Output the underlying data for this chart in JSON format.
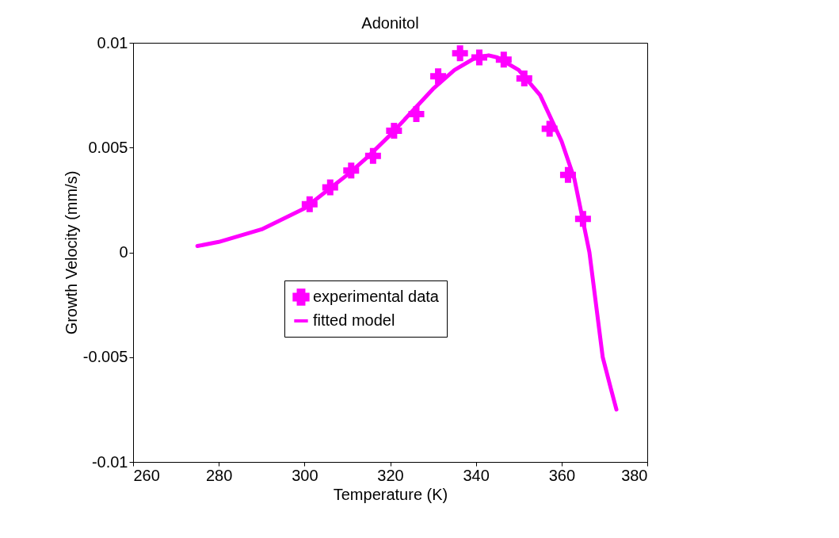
{
  "chart_data": {
    "type": "scatter",
    "title": "Adonitol",
    "xlabel": "Temperature (K)",
    "ylabel": "Growth Velocity (mm/s)",
    "xlim": [
      260,
      380
    ],
    "xticks": [
      260,
      280,
      300,
      320,
      340,
      360,
      380
    ],
    "ylim": [
      -0.01,
      0.01
    ],
    "yticks": [
      -0.01,
      -0.005,
      0,
      0.005,
      0.01
    ],
    "grid": false,
    "legend": "center",
    "series": [
      {
        "name": "experimental data",
        "marker": "cross",
        "color": "#ff00ff",
        "x": [
          301.2,
          306.0,
          310.9,
          316.0,
          320.9,
          326.1,
          331.2,
          336.3,
          340.8,
          346.5,
          351.3,
          357.2,
          361.5,
          365.0
        ],
        "values": [
          0.0023,
          0.0031,
          0.0039,
          0.0046,
          0.0058,
          0.0066,
          0.0084,
          0.0095,
          0.0093,
          0.0092,
          0.0083,
          0.0059,
          0.0037,
          0.0016
        ]
      },
      {
        "name": "fitted model",
        "type": "line",
        "line_style": "solid",
        "color": "#ff00ff",
        "x": [
          275,
          280,
          285,
          290,
          295,
          300,
          305,
          310,
          315,
          320,
          325,
          330,
          335,
          340,
          343,
          345,
          350,
          355,
          360,
          363,
          366.5,
          369.6,
          371.5,
          372.8
        ],
        "values": [
          0.0003,
          0.0005,
          0.0008,
          0.0011,
          0.0016,
          0.0021,
          0.0029,
          0.0037,
          0.0046,
          0.0056,
          0.0067,
          0.0078,
          0.0087,
          0.0093,
          0.0094,
          0.0093,
          0.0087,
          0.0075,
          0.0053,
          0.0035,
          0.0,
          -0.005,
          -0.0065,
          -0.0075
        ]
      }
    ]
  }
}
